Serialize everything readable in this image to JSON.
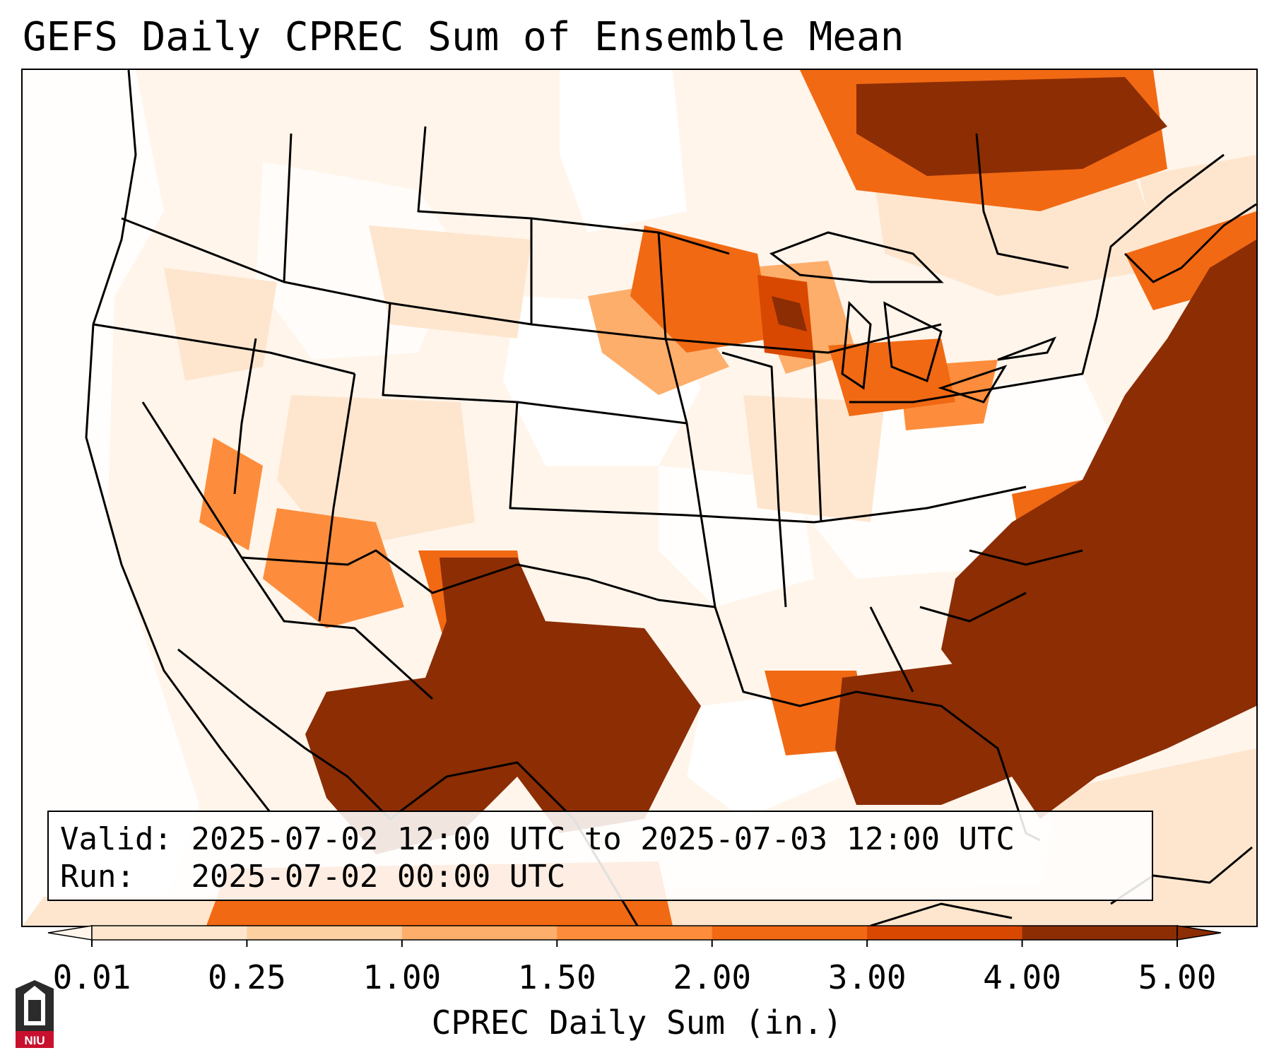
{
  "title": "GEFS Daily CPREC Sum of Ensemble Mean",
  "info": {
    "valid_label": "Valid:",
    "valid_value": "2025-07-02 12:00 UTC to 2025-07-03 12:00 UTC",
    "run_label": "Run:",
    "run_value": "2025-07-02 00:00 UTC"
  },
  "colorbar": {
    "label": "CPREC Daily Sum (in.)",
    "ticks": [
      "0.01",
      "0.25",
      "1.00",
      "1.50",
      "2.00",
      "3.00",
      "4.00",
      "5.00"
    ],
    "colors": [
      "#fff5eb",
      "#fee6ce",
      "#fdd0a2",
      "#fdae6b",
      "#fd8d3c",
      "#f16913",
      "#d94801",
      "#8c2d04"
    ],
    "extend": "both"
  },
  "legend_colors": {
    "background": "#ffffff",
    "lightest": "#fff5eb",
    "darkest": "#8c2d04",
    "borders": "#000000"
  },
  "logo": {
    "text": "NIU",
    "color": "#c8102e"
  }
}
